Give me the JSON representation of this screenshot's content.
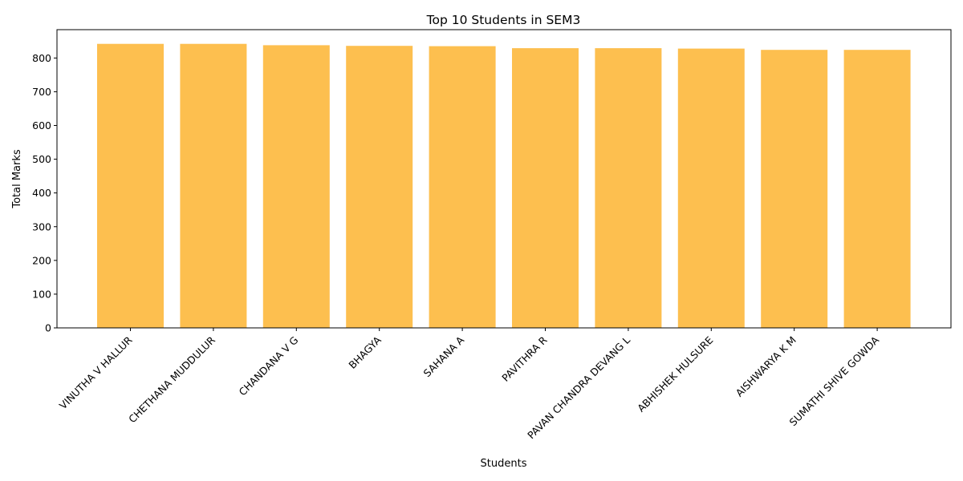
{
  "chart_data": {
    "type": "bar",
    "title": "Top 10 Students in SEM3",
    "xlabel": "Students",
    "ylabel": "Total Marks",
    "categories": [
      "VINUTHA V HALLUR",
      "CHETHANA MUDDULUR",
      "CHANDANA V G",
      "BHAGYA",
      "SAHANA A",
      "PAVITHRA R",
      "PAVAN CHANDRA DEVANG L",
      "ABHISHEK HULSURE",
      "AISHWARYA K M",
      "SUMATHI SHIVE GOWDA"
    ],
    "values": [
      842,
      842,
      838,
      836,
      835,
      829,
      829,
      828,
      824,
      824
    ],
    "ylim": [
      0,
      884
    ],
    "yticks": [
      0,
      100,
      200,
      300,
      400,
      500,
      600,
      700,
      800
    ],
    "bar_color": "#fdbf4f",
    "grid": false
  }
}
